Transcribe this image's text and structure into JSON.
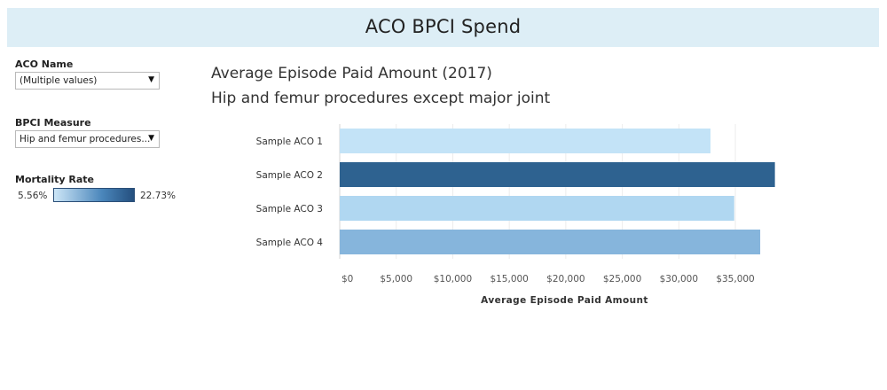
{
  "header": {
    "title": "ACO BPCI Spend"
  },
  "filters": {
    "aco_name": {
      "label": "ACO Name",
      "value": "(Multiple values)"
    },
    "bpci_measure": {
      "label": "BPCI Measure",
      "value": "Hip and femur procedures..."
    }
  },
  "color_legend": {
    "label": "Mortality Rate",
    "min": "5.56%",
    "max": "22.73%",
    "color_min": "#cde6f7",
    "color_max": "#244f7e"
  },
  "chart_data": {
    "type": "bar",
    "orientation": "horizontal",
    "title": "Average Episode Paid Amount (2017)",
    "subtitle": "Hip and femur procedures except major joint",
    "categories": [
      "Sample ACO 1",
      "Sample ACO 2",
      "Sample ACO 3",
      "Sample ACO 4"
    ],
    "values": [
      32800,
      38500,
      34900,
      37200
    ],
    "colors": [
      "#c3e3f7",
      "#2e6290",
      "#b0d7f1",
      "#86b5dc"
    ],
    "xlabel": "Average Episode Paid Amount",
    "ylabel": "",
    "xlim": [
      0,
      39000
    ],
    "xticks": [
      0,
      5000,
      10000,
      15000,
      20000,
      25000,
      30000,
      35000
    ],
    "xtick_labels": [
      "$0",
      "$5,000",
      "$10,000",
      "$15,000",
      "$20,000",
      "$25,000",
      "$30,000",
      "$35,000"
    ],
    "grid": true,
    "legend": "left"
  }
}
